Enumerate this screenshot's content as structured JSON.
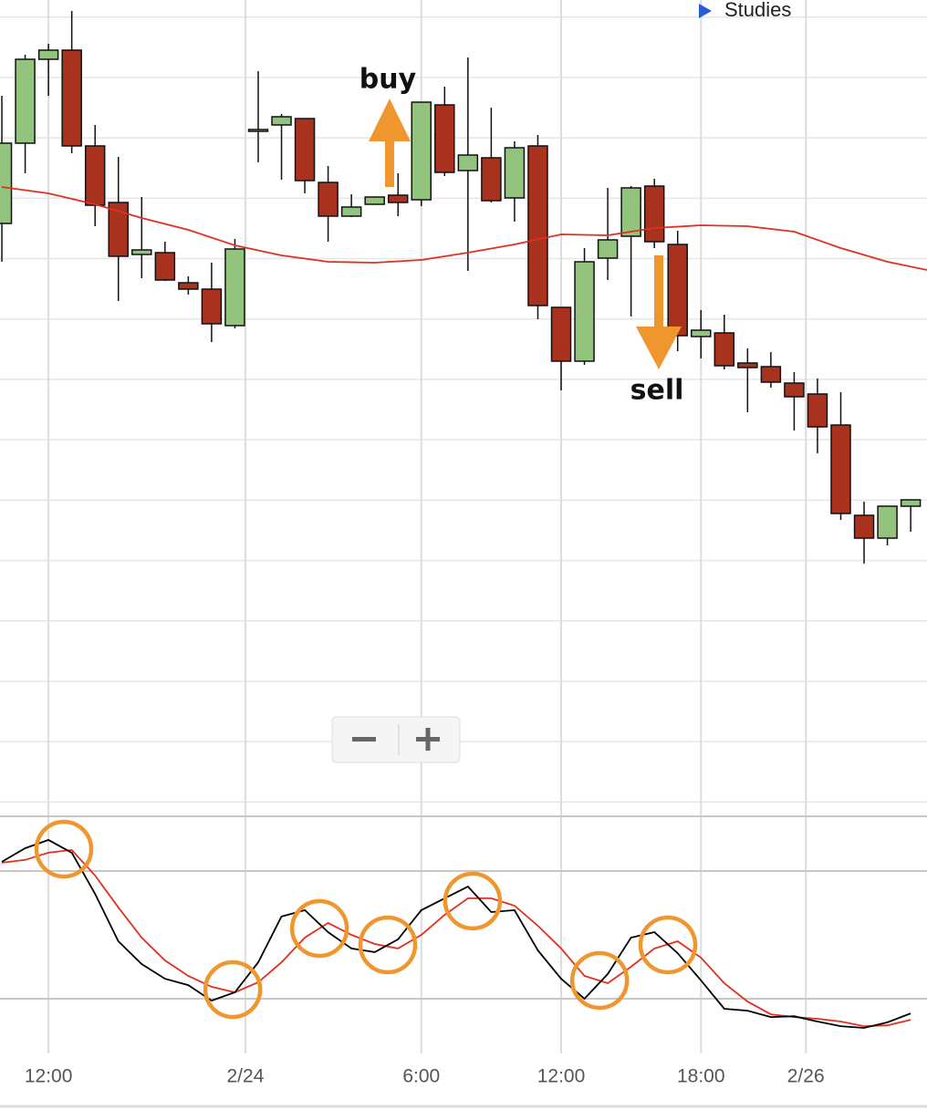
{
  "toolbar": {
    "studies": "Studies"
  },
  "chart_data": [
    {
      "type": "candlestick",
      "up_color": "#93c47d",
      "down_color": "#a8321e",
      "xlim": [
        -0.08,
        39.7
      ],
      "ylim": [
        0,
        89
      ],
      "x": [
        0,
        1,
        2,
        3,
        4,
        5,
        6,
        7,
        8,
        9,
        10,
        11,
        12,
        13,
        14,
        15,
        16,
        17,
        18,
        19,
        20,
        21,
        22,
        23,
        24,
        25,
        26,
        27,
        28,
        29,
        30,
        31,
        32,
        33,
        34,
        35,
        36,
        37,
        38,
        39
      ],
      "open": [
        64.5,
        73.3,
        82.5,
        83.5,
        73,
        66.8,
        61.1,
        61.3,
        58,
        57.3,
        53.3,
        74.6,
        75.3,
        76,
        69,
        65.3,
        66.6,
        67.6,
        67.1,
        77.5,
        70.3,
        71.7,
        67.3,
        73,
        55.3,
        49.4,
        60.7,
        63.1,
        68.6,
        62.2,
        52.1,
        52.5,
        49.2,
        48.8,
        47,
        45.8,
        42.4,
        32.5,
        30,
        33.5
      ],
      "high": [
        78.5,
        83,
        84.2,
        87.8,
        75.3,
        71.8,
        67.4,
        62.5,
        58.7,
        60.2,
        62.8,
        81.2,
        76.5,
        76,
        70.8,
        67.7,
        67.4,
        70,
        77.8,
        79.5,
        82.7,
        77.2,
        73.5,
        74.2,
        55.3,
        61.8,
        68.4,
        68.6,
        69.4,
        63.7,
        55,
        54.5,
        50.8,
        50.4,
        48.2,
        47.5,
        46,
        34,
        33.5,
        34.2
      ],
      "low": [
        60.3,
        70,
        78.5,
        72.2,
        64.2,
        56,
        58.5,
        58.2,
        56.7,
        51.5,
        53,
        71.2,
        69.3,
        67.8,
        62.5,
        65.2,
        66.6,
        65.3,
        66.4,
        69.7,
        59.3,
        66.8,
        64.7,
        54,
        46.2,
        49,
        58.3,
        54.3,
        61.8,
        50.5,
        49.7,
        48.5,
        43.8,
        46.5,
        41.8,
        39.3,
        32,
        27.2,
        29.2,
        30.7
      ],
      "close": [
        73.3,
        82.5,
        83.5,
        73,
        66.5,
        60.9,
        61.6,
        58.3,
        57.3,
        53.5,
        61.7,
        74.8,
        76.2,
        69.2,
        65.3,
        66.3,
        67.4,
        66.8,
        77.8,
        70.1,
        72,
        67,
        72.8,
        55.5,
        49.4,
        60.3,
        62.7,
        68.4,
        62.5,
        52.2,
        52.8,
        48.9,
        48.7,
        47.1,
        45.5,
        42.2,
        32.7,
        30,
        33.5,
        34.2
      ],
      "series": [
        {
          "color": "#e0301e",
          "x": [
            0,
            2,
            4,
            6,
            8,
            10,
            12,
            14,
            16,
            18,
            20,
            22,
            24,
            26,
            28,
            30,
            32,
            34,
            36,
            38,
            39.7
          ],
          "values": [
            68.5,
            67.8,
            66.6,
            65.1,
            63.8,
            62.1,
            61,
            60.3,
            60.2,
            60.5,
            61.3,
            62.2,
            63.3,
            63.2,
            64,
            64.3,
            64.2,
            63.6,
            61.8,
            60.3,
            59.4
          ]
        }
      ],
      "annotations": [
        {
          "text": "buy"
        },
        {
          "text": "sell"
        }
      ]
    },
    {
      "type": "line",
      "xlim": [
        -0.08,
        39.7
      ],
      "ylim": [
        -5.7,
        105.7
      ],
      "hlines": [
        20,
        80
      ],
      "xticks": [
        {
          "value": 2,
          "label": "12:00"
        },
        {
          "value": 10.45,
          "label": "2/24"
        },
        {
          "value": 18,
          "label": "6:00"
        },
        {
          "value": 24,
          "label": "12:00"
        },
        {
          "value": 30,
          "label": "18:00"
        },
        {
          "value": 34.5,
          "label": "2/26"
        }
      ],
      "x": [
        0,
        1,
        2,
        3,
        4,
        5,
        6,
        7,
        8,
        9,
        10,
        11,
        12,
        13,
        14,
        15,
        16,
        17,
        18,
        19,
        20,
        21,
        22,
        23,
        24,
        25,
        26,
        27,
        28,
        29,
        30,
        31,
        32,
        33,
        34,
        35,
        36,
        37,
        38,
        39
      ],
      "series": [
        {
          "color": "#000000",
          "values": [
            84.3,
            90.7,
            94.6,
            88.6,
            69.3,
            47,
            36.3,
            29.4,
            26.4,
            19.1,
            23,
            37.1,
            58.6,
            61.6,
            51.3,
            43.6,
            41.9,
            47.9,
            61.6,
            67.2,
            72.7,
            60.7,
            61.6,
            42.7,
            29.4,
            20,
            31.6,
            48.7,
            51.3,
            41.4,
            28.6,
            15.3,
            14.4,
            11.4,
            11.8,
            9.3,
            7.1,
            6.3,
            8.9,
            13.1
          ]
        },
        {
          "color": "#e0301e",
          "values": [
            83.9,
            85.2,
            88.6,
            89.9,
            77.9,
            62.9,
            48.7,
            38,
            30.7,
            25.6,
            23,
            27.7,
            37.1,
            48.7,
            55.6,
            50,
            45.7,
            43.6,
            50,
            59.4,
            67.2,
            67.2,
            63.7,
            54.3,
            43.6,
            30.7,
            27.3,
            35,
            43.6,
            47,
            39.3,
            27.3,
            18.7,
            12.7,
            11.4,
            10.6,
            9.3,
            7.1,
            7.5,
            10.1
          ]
        }
      ],
      "crossovers": {
        "color": "#f0962e",
        "x": [
          2.66,
          9.91,
          13.63,
          16.56,
          20.2,
          25.65,
          28.58
        ],
        "y": [
          90.3,
          24.3,
          53,
          45.3,
          65.9,
          28.6,
          45.3
        ]
      }
    }
  ]
}
